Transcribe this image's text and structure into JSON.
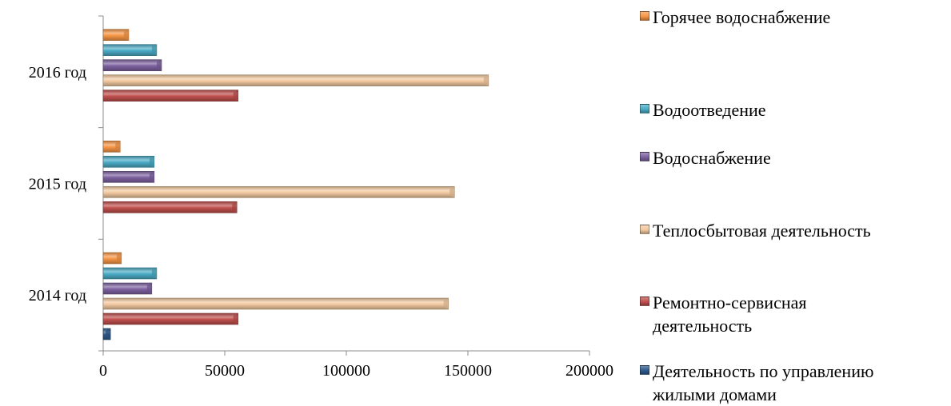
{
  "chart_data": {
    "type": "bar",
    "orientation": "horizontal",
    "categories": [
      "2014 год",
      "2015 год",
      "2016 год"
    ],
    "series": [
      {
        "name": "Деятельность по управлению жилыми домами",
        "color": "#2e5a8e",
        "values": [
          3000,
          0,
          0
        ]
      },
      {
        "name": "Ремонтно-сервисная деятельность",
        "color": "#c0504d",
        "values": [
          55500,
          55000,
          55500
        ]
      },
      {
        "name": "Теплосбытовая деятельность",
        "color": "#f2c9a0",
        "values": [
          142000,
          144500,
          158500
        ]
      },
      {
        "name": "Водоснабжение",
        "color": "#7e62a1",
        "values": [
          20000,
          21000,
          24000
        ]
      },
      {
        "name": "Водоотведение",
        "color": "#4bacc6",
        "values": [
          22000,
          21000,
          22000
        ]
      },
      {
        "name": "Горячее водоснабжение",
        "color": "#f79646",
        "values": [
          7500,
          7000,
          10500
        ]
      }
    ],
    "xlim": [
      0,
      200000
    ],
    "xticks": [
      "0",
      "50000",
      "100000",
      "150000",
      "200000"
    ],
    "xtick_values": [
      0,
      50000,
      100000,
      150000,
      200000
    ],
    "legend_position": "right",
    "legend_order": [
      "Горячее водоснабжение",
      "Водоотведение",
      "Водоснабжение",
      "Теплосбытовая деятельность",
      "Ремонтно-сервисная деятельность",
      "Деятельность по управлению жилыми домами"
    ],
    "legend_display": [
      "Горячее водоснабжение",
      "Водоотведение",
      "Водоснабжение",
      "Теплосбытовая деятельность",
      "Ремонтно-сервисная\nдеятельность",
      "Деятельность по управлению\nжилыми домами"
    ],
    "grid": false
  }
}
